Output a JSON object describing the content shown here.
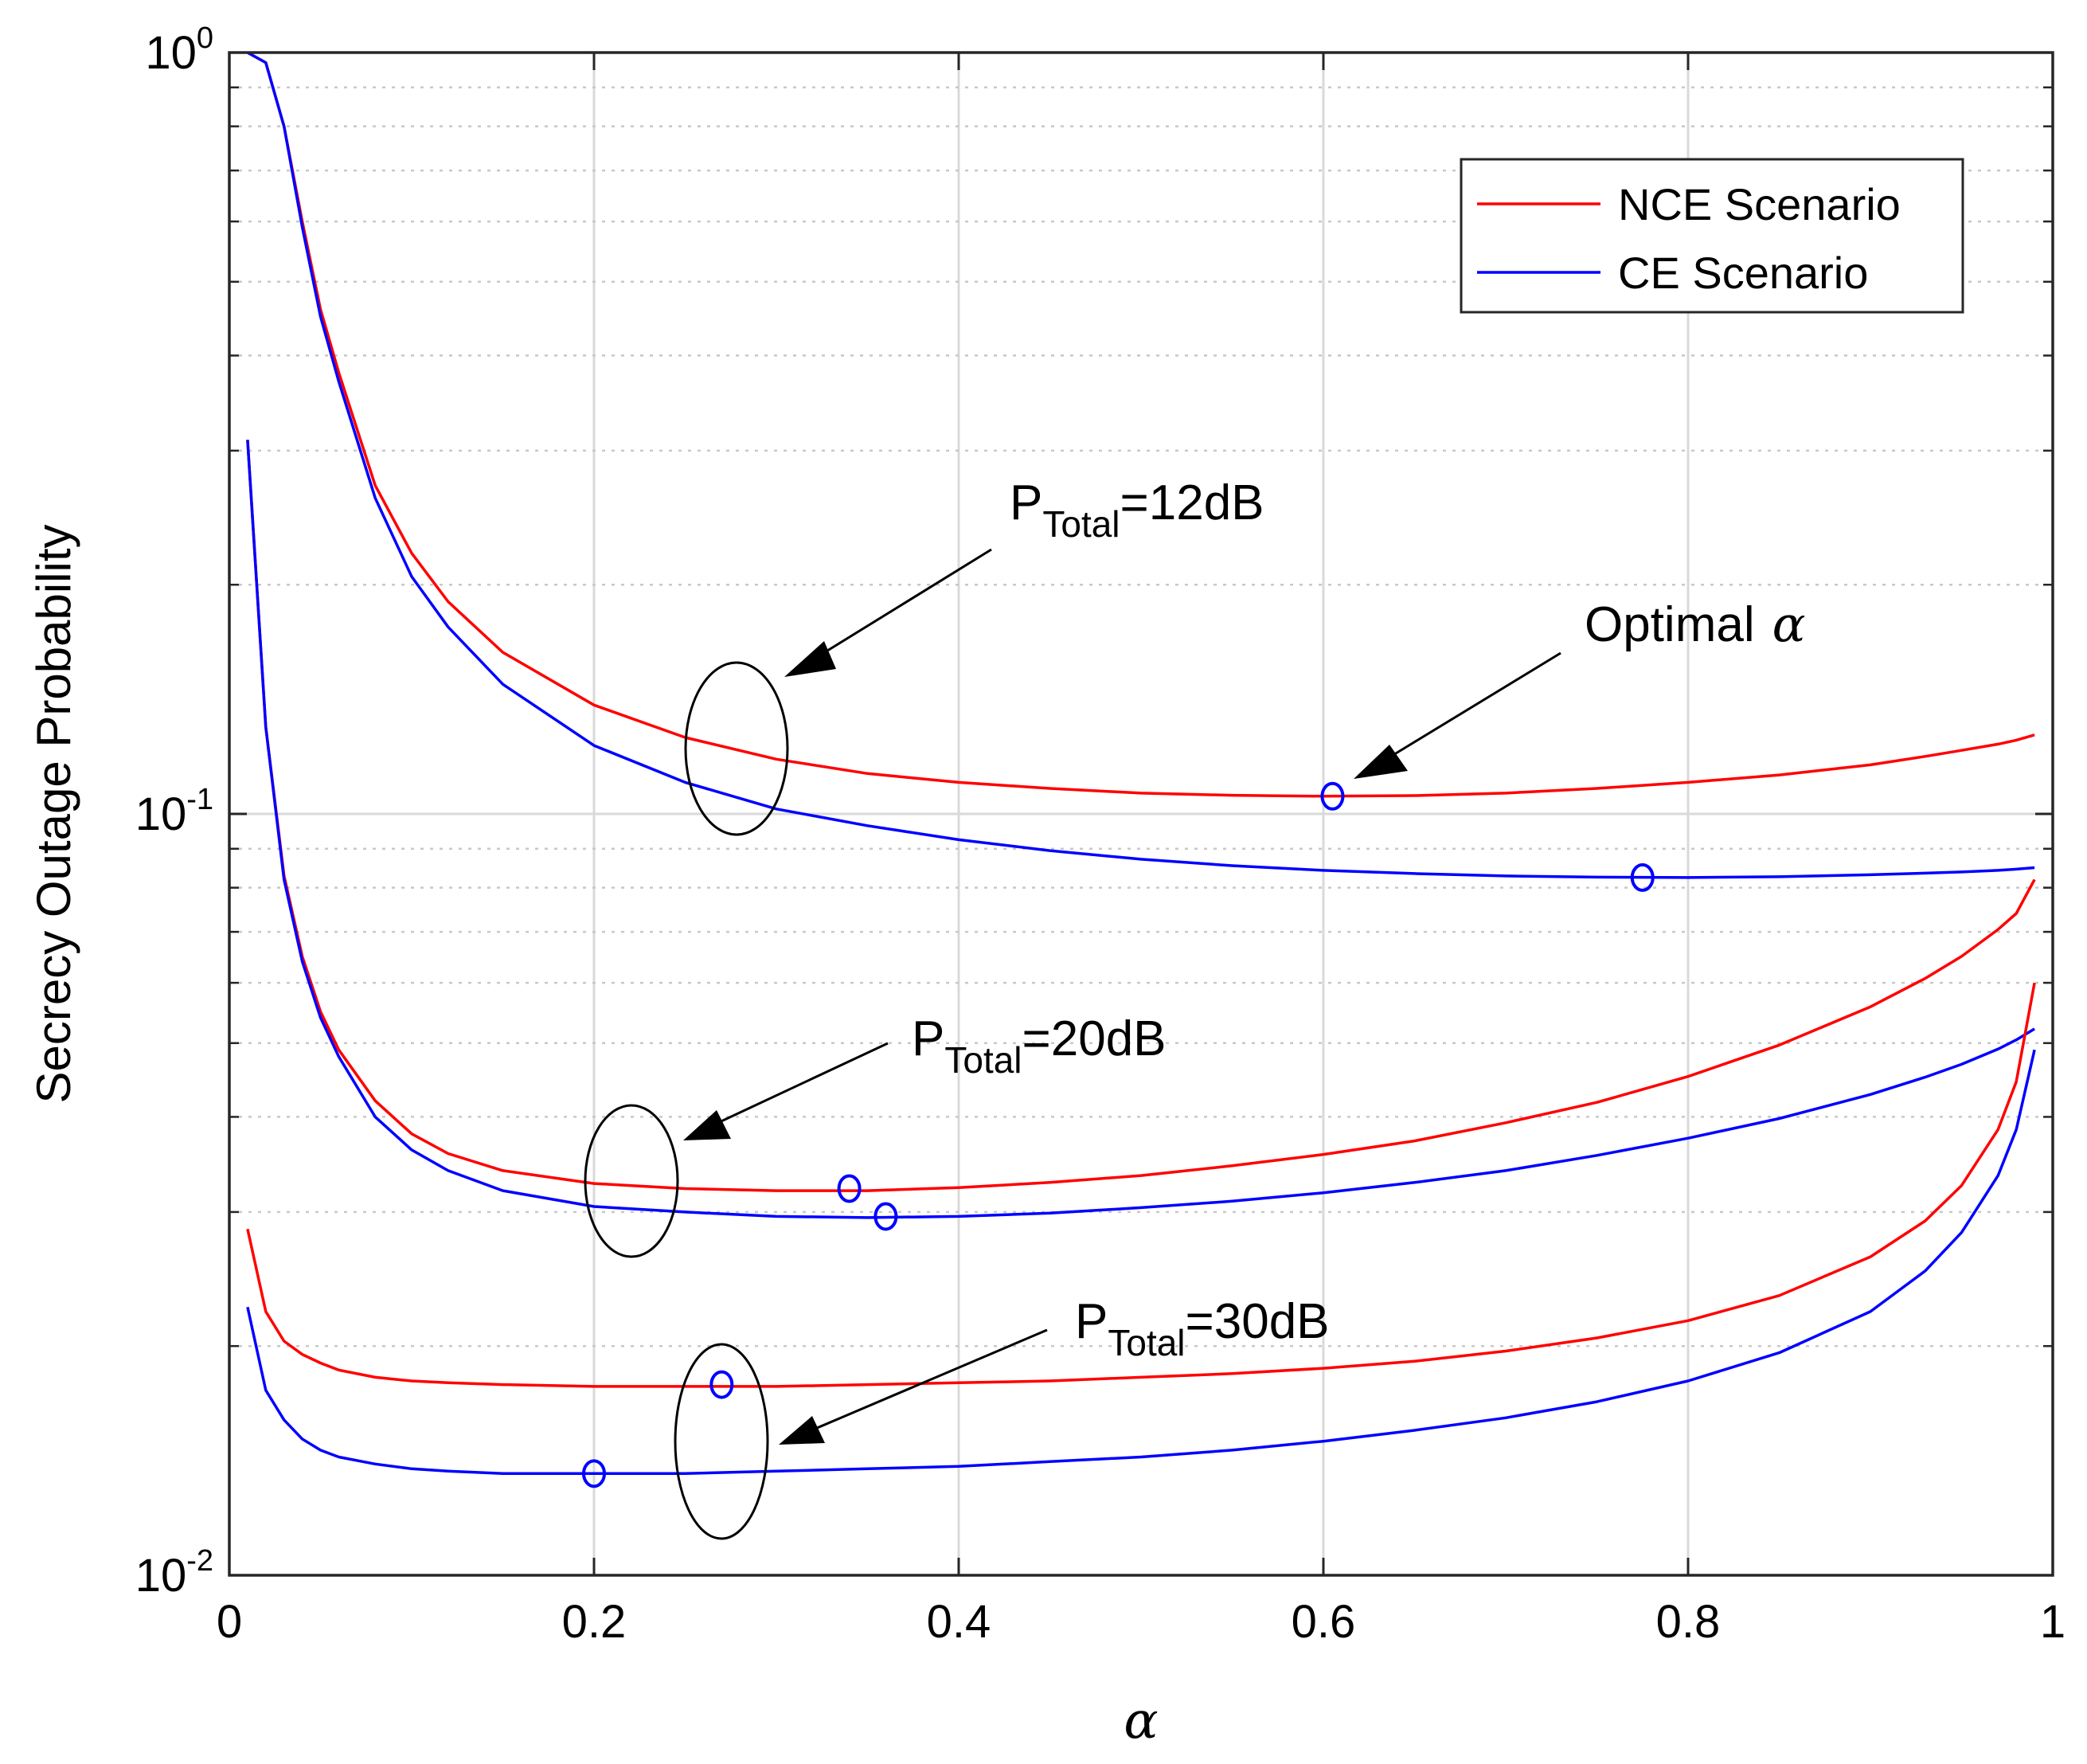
{
  "chart_data": {
    "type": "line",
    "yscale": "log",
    "xlabel": "α",
    "ylabel": "Secrecy Outage Probability",
    "xlim": [
      0,
      1
    ],
    "ylim": [
      0.01,
      1
    ],
    "x_ticks": [
      "0",
      "0.2",
      "0.4",
      "0.6",
      "0.8",
      "1"
    ],
    "y_ticks": [
      {
        "base": "10",
        "exp": "0",
        "value": 1
      },
      {
        "base": "10",
        "exp": "-1",
        "value": 0.1
      },
      {
        "base": "10",
        "exp": "-2",
        "value": 0.01
      }
    ],
    "grid": true,
    "colors": {
      "nce": "#ff0000",
      "ce": "#0000ff",
      "axis": "#000000"
    },
    "legend": {
      "position": "top-right",
      "entries": [
        {
          "label": "NCE Scenario",
          "color": "#ff0000"
        },
        {
          "label": "CE Scenario",
          "color": "#0000ff"
        }
      ]
    },
    "x": [
      0.01,
      0.02,
      0.03,
      0.04,
      0.05,
      0.06,
      0.08,
      0.1,
      0.12,
      0.15,
      0.2,
      0.25,
      0.3,
      0.35,
      0.4,
      0.45,
      0.5,
      0.55,
      0.6,
      0.65,
      0.7,
      0.75,
      0.8,
      0.85,
      0.9,
      0.93,
      0.95,
      0.97,
      0.98,
      0.99
    ],
    "series": [
      {
        "name": "NCE Scenario",
        "group": "P_Total=12dB",
        "color": "#ff0000",
        "values": [
          1.0,
          0.97,
          0.8,
          0.6,
          0.46,
          0.38,
          0.27,
          0.22,
          0.19,
          0.163,
          0.139,
          0.126,
          0.118,
          0.113,
          0.11,
          0.108,
          0.1065,
          0.1058,
          0.1055,
          0.1057,
          0.1065,
          0.108,
          0.11,
          0.1125,
          0.116,
          0.119,
          0.1212,
          0.1235,
          0.125,
          0.127
        ]
      },
      {
        "name": "CE Scenario",
        "group": "P_Total=12dB",
        "color": "#0000ff",
        "values": [
          1.0,
          0.97,
          0.8,
          0.59,
          0.45,
          0.37,
          0.26,
          0.205,
          0.176,
          0.148,
          0.123,
          0.11,
          0.1015,
          0.0965,
          0.0925,
          0.0895,
          0.0872,
          0.0855,
          0.0843,
          0.0835,
          0.0829,
          0.0826,
          0.0825,
          0.0827,
          0.0832,
          0.0836,
          0.0839,
          0.0843,
          0.0846,
          0.085
        ]
      },
      {
        "name": "NCE Scenario",
        "group": "P_Total=20dB",
        "color": "#ff0000",
        "values": [
          0.31,
          0.13,
          0.083,
          0.065,
          0.055,
          0.049,
          0.042,
          0.038,
          0.0358,
          0.034,
          0.0327,
          0.0322,
          0.032,
          0.032,
          0.0323,
          0.0328,
          0.0335,
          0.0345,
          0.0357,
          0.0372,
          0.0393,
          0.0418,
          0.0452,
          0.0497,
          0.0558,
          0.0608,
          0.065,
          0.0705,
          0.074,
          0.082
        ]
      },
      {
        "name": "CE Scenario",
        "group": "P_Total=20dB",
        "color": "#0000ff",
        "values": [
          0.31,
          0.13,
          0.082,
          0.064,
          0.054,
          0.048,
          0.04,
          0.0362,
          0.034,
          0.032,
          0.0305,
          0.03,
          0.0296,
          0.0295,
          0.0296,
          0.0299,
          0.0304,
          0.031,
          0.0318,
          0.0328,
          0.034,
          0.0356,
          0.0375,
          0.0398,
          0.0428,
          0.0451,
          0.0469,
          0.0491,
          0.0505,
          0.0522
        ]
      },
      {
        "name": "NCE Scenario",
        "group": "P_Total=30dB",
        "color": "#ff0000",
        "values": [
          0.0285,
          0.0222,
          0.0203,
          0.0195,
          0.019,
          0.0186,
          0.0182,
          0.018,
          0.0179,
          0.0178,
          0.0177,
          0.0177,
          0.0177,
          0.0178,
          0.0179,
          0.018,
          0.0182,
          0.0184,
          0.0187,
          0.0191,
          0.0197,
          0.0205,
          0.0216,
          0.0233,
          0.0262,
          0.0292,
          0.0325,
          0.0385,
          0.0445,
          0.06
        ]
      },
      {
        "name": "CE Scenario",
        "group": "P_Total=30dB",
        "color": "#0000ff",
        "values": [
          0.0225,
          0.0175,
          0.016,
          0.0151,
          0.0146,
          0.0143,
          0.014,
          0.0138,
          0.0137,
          0.0136,
          0.0136,
          0.0136,
          0.0137,
          0.0138,
          0.0139,
          0.0141,
          0.0143,
          0.0146,
          0.015,
          0.0155,
          0.0161,
          0.0169,
          0.018,
          0.0196,
          0.0222,
          0.0251,
          0.0282,
          0.0335,
          0.0385,
          0.049
        ]
      }
    ],
    "markers": [
      {
        "x": 0.605,
        "y": 0.1055,
        "color": "#0000ff"
      },
      {
        "x": 0.775,
        "y": 0.0825,
        "color": "#0000ff"
      },
      {
        "x": 0.34,
        "y": 0.0322,
        "color": "#0000ff"
      },
      {
        "x": 0.36,
        "y": 0.0296,
        "color": "#0000ff"
      },
      {
        "x": 0.27,
        "y": 0.0178,
        "color": "#0000ff"
      },
      {
        "x": 0.2,
        "y": 0.0136,
        "color": "#0000ff"
      }
    ],
    "annotations": [
      {
        "label": "P",
        "sub": "Total",
        "suffix": "=12dB"
      },
      {
        "label": "Optimal",
        "symbol": "α"
      },
      {
        "label": "P",
        "sub": "Total",
        "suffix": "=20dB"
      },
      {
        "label": "P",
        "sub": "Total",
        "suffix": "=30dB"
      }
    ]
  }
}
